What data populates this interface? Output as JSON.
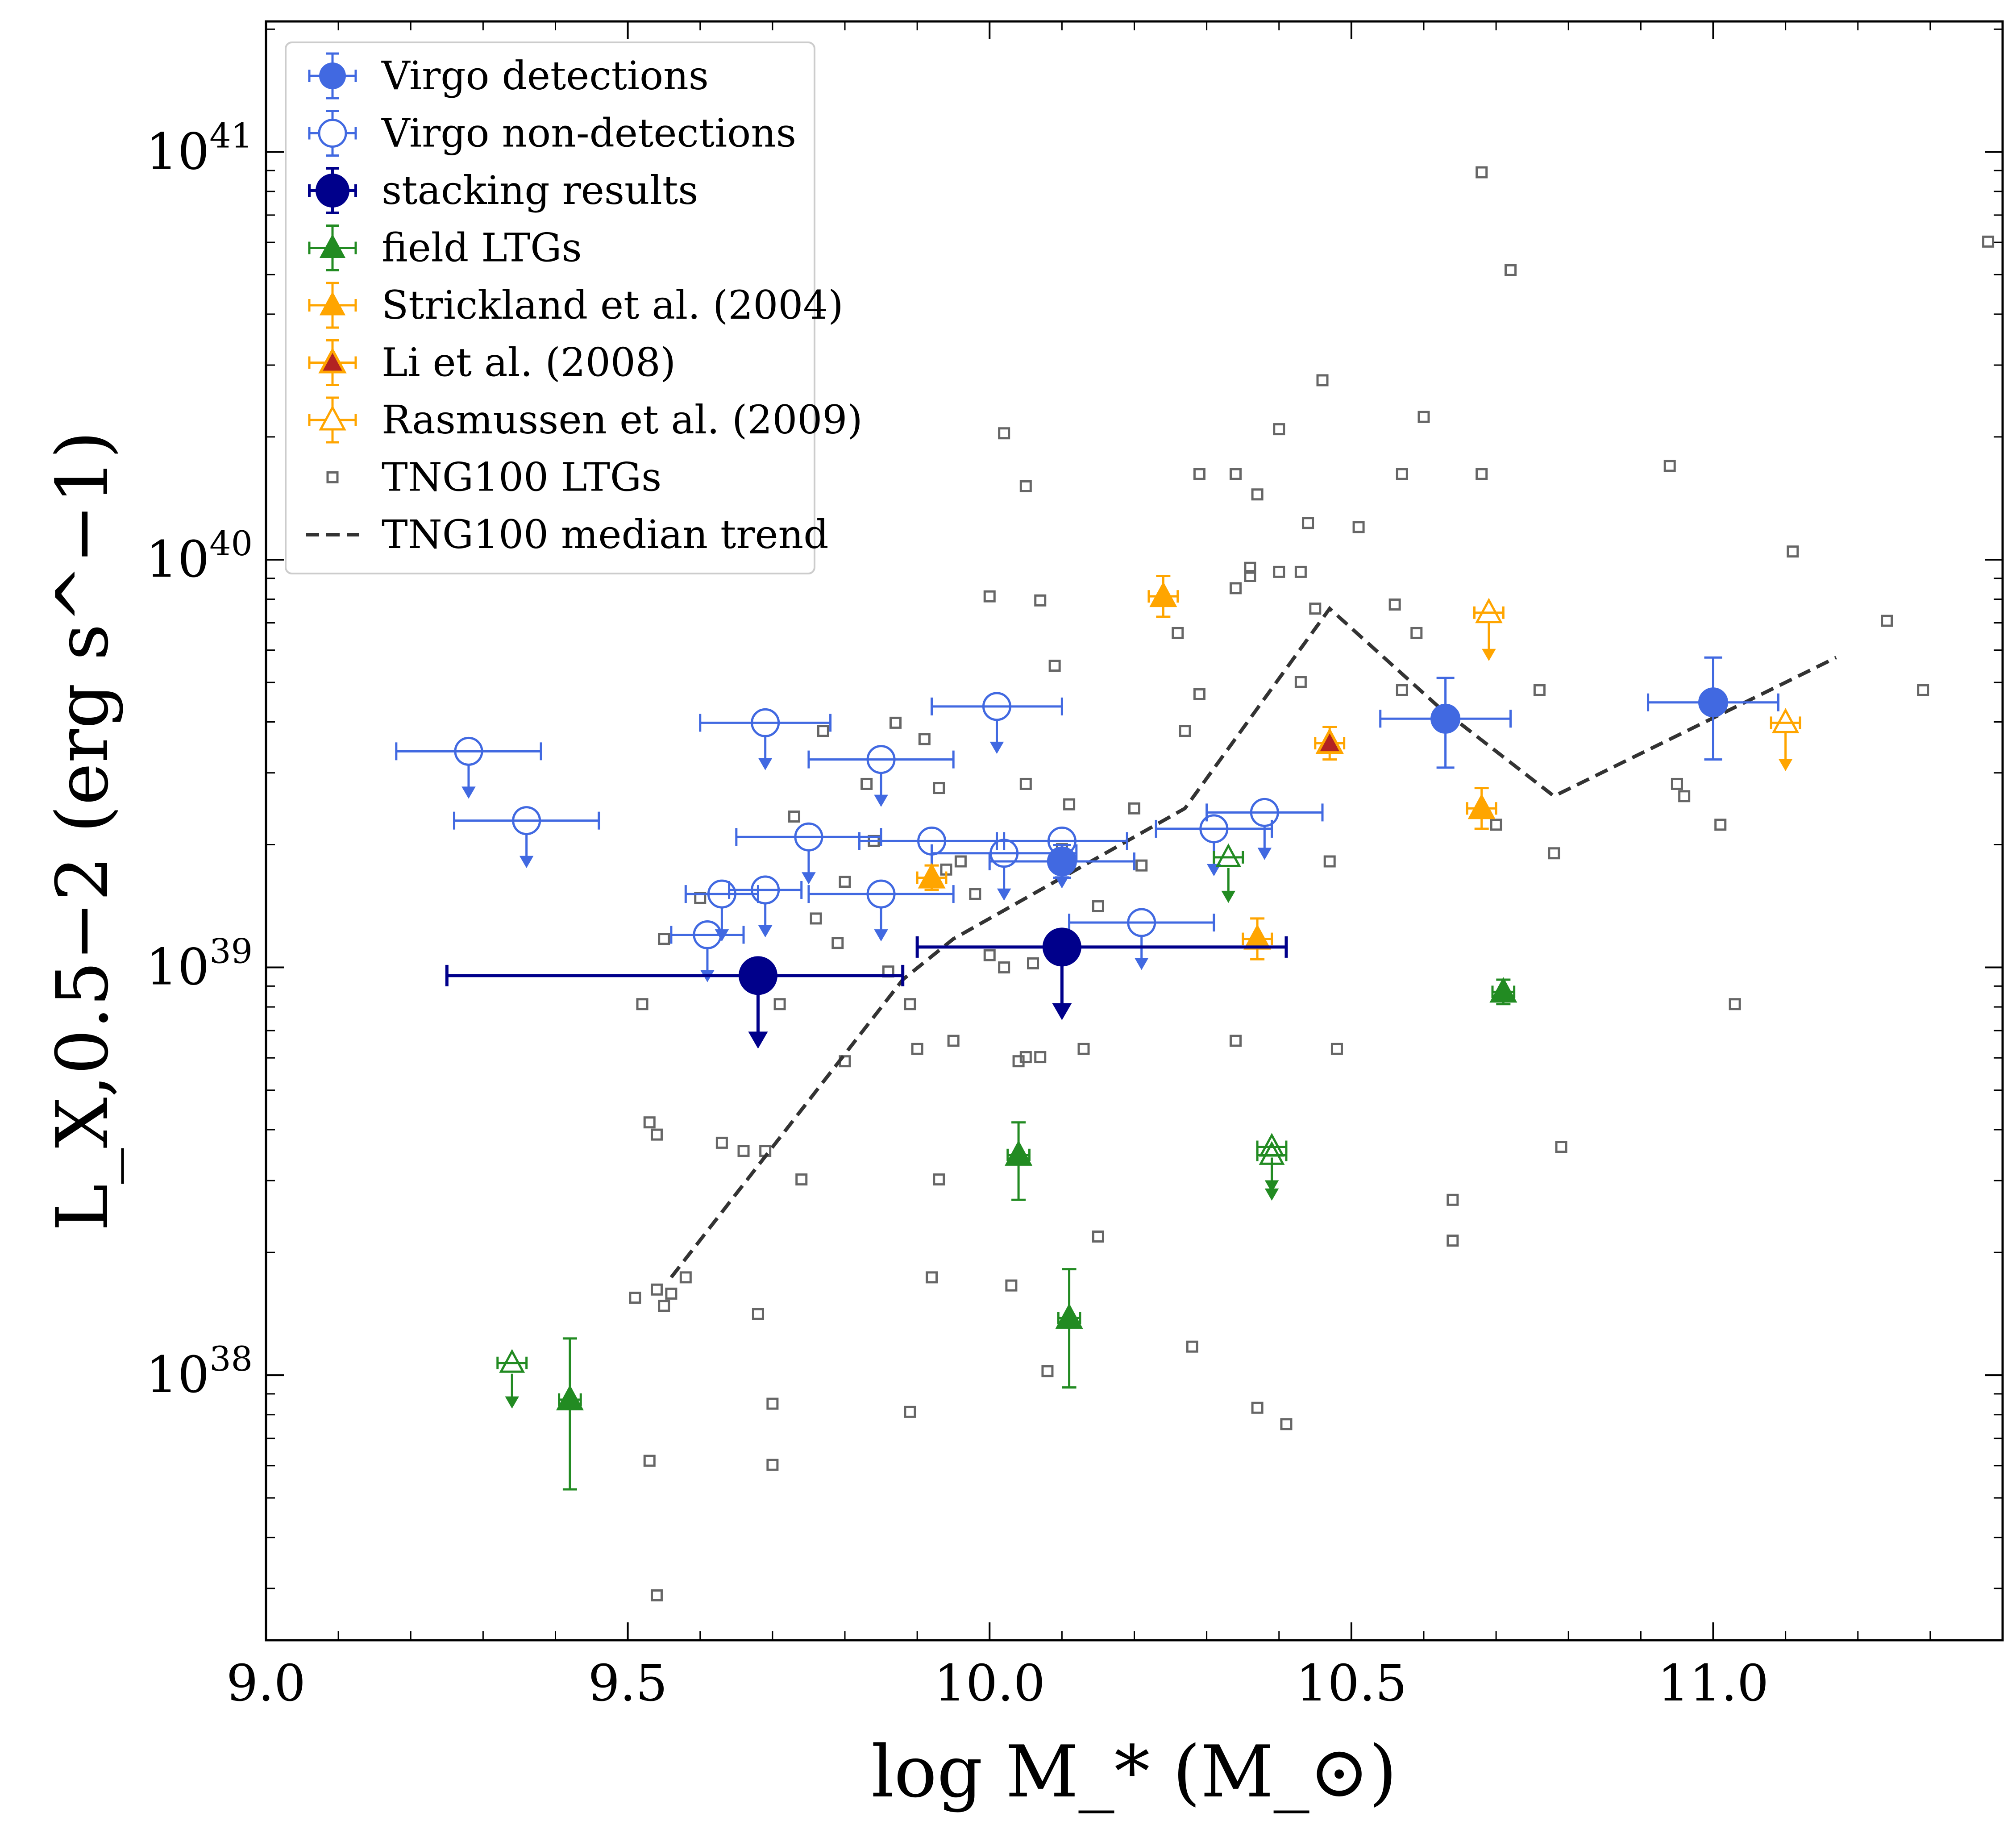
{
  "chart_data": {
    "type": "scatter",
    "xlabel": "log M_* (M_⊙)",
    "ylabel": "L_X,0.5−2 (erg s^−1)",
    "xlim": [
      9.0,
      11.4
    ],
    "ylim_log10": [
      37.35,
      41.32
    ],
    "x_ticks": [
      {
        "value": 9.0,
        "label": "9.0"
      },
      {
        "value": 9.5,
        "label": "9.5"
      },
      {
        "value": 10.0,
        "label": "10.0"
      },
      {
        "value": 10.5,
        "label": "10.5"
      },
      {
        "value": 11.0,
        "label": "11.0"
      }
    ],
    "y_ticks": [
      {
        "value": 38,
        "label_base": "10",
        "label_exp": "38"
      },
      {
        "value": 39,
        "label_base": "10",
        "label_exp": "39"
      },
      {
        "value": 40,
        "label_base": "10",
        "label_exp": "40"
      },
      {
        "value": 41,
        "label_base": "10",
        "label_exp": "41"
      }
    ],
    "colors": {
      "virgo": "#4169e1",
      "stacking": "#00008b",
      "field": "#228b22",
      "strickland": "#ffa500",
      "li_face": "#b22222",
      "tng": "#666666",
      "median": "#333333"
    },
    "legend": [
      {
        "key": "virgo_det",
        "label": "Virgo detections"
      },
      {
        "key": "virgo_nondet",
        "label": "Virgo non-detections"
      },
      {
        "key": "stacking",
        "label": "stacking results"
      },
      {
        "key": "field",
        "label": "field LTGs"
      },
      {
        "key": "strickland",
        "label": "Strickland et al. (2004)"
      },
      {
        "key": "li",
        "label": "Li et al. (2008)"
      },
      {
        "key": "rasmussen",
        "label": "Rasmussen et al. (2009)"
      },
      {
        "key": "tng",
        "label": "TNG100 LTGs"
      },
      {
        "key": "median",
        "label": "TNG100 median trend"
      }
    ],
    "series": [
      {
        "name": "Virgo detections",
        "key": "virgo_det",
        "points": [
          {
            "x": 10.1,
            "y": 39.26,
            "xerr": 0.1,
            "yerr_up": 0.04,
            "yerr_down": 0.04
          },
          {
            "x": 10.63,
            "y": 39.61,
            "xerr": 0.09,
            "yerr_up": 0.1,
            "yerr_down": 0.12
          },
          {
            "x": 11.0,
            "y": 39.65,
            "xerr": 0.09,
            "yerr_up": 0.11,
            "yerr_down": 0.14
          }
        ]
      },
      {
        "name": "Virgo non-detections",
        "key": "virgo_nondet",
        "upper_limit": true,
        "points": [
          {
            "x": 9.28,
            "y": 39.53,
            "xerr": 0.1
          },
          {
            "x": 9.36,
            "y": 39.36,
            "xerr": 0.1
          },
          {
            "x": 9.61,
            "y": 39.08,
            "xerr": 0.05
          },
          {
            "x": 9.63,
            "y": 39.18,
            "xerr": 0.05
          },
          {
            "x": 9.69,
            "y": 39.19,
            "xerr": 0.05
          },
          {
            "x": 9.69,
            "y": 39.6,
            "xerr": 0.09
          },
          {
            "x": 9.75,
            "y": 39.32,
            "xerr": 0.1
          },
          {
            "x": 9.85,
            "y": 39.51,
            "xerr": 0.1
          },
          {
            "x": 9.85,
            "y": 39.18,
            "xerr": 0.1
          },
          {
            "x": 9.92,
            "y": 39.31,
            "xerr": 0.1
          },
          {
            "x": 10.01,
            "y": 39.64,
            "xerr": 0.09
          },
          {
            "x": 10.02,
            "y": 39.28,
            "xerr": 0.1
          },
          {
            "x": 10.1,
            "y": 39.31,
            "xerr": 0.09
          },
          {
            "x": 10.21,
            "y": 39.11,
            "xerr": 0.1
          },
          {
            "x": 10.31,
            "y": 39.34,
            "xerr": 0.08
          },
          {
            "x": 10.38,
            "y": 39.38,
            "xerr": 0.08
          }
        ]
      },
      {
        "name": "stacking results",
        "key": "stacking",
        "upper_limit": true,
        "points": [
          {
            "x": 9.68,
            "y": 38.98,
            "xerr_low": 0.43,
            "xerr_high": 0.2
          },
          {
            "x": 10.1,
            "y": 39.05,
            "xerr_low": 0.2,
            "xerr_high": 0.31
          }
        ]
      },
      {
        "name": "field LTGs",
        "key": "field",
        "points": [
          {
            "x": 9.42,
            "y": 37.94,
            "xerr": 0.015,
            "yerr_up": 0.15,
            "yerr_down": 0.22,
            "filled": true
          },
          {
            "x": 10.04,
            "y": 38.54,
            "xerr": 0.015,
            "yerr_up": 0.08,
            "yerr_down": 0.11,
            "filled": true
          },
          {
            "x": 10.11,
            "y": 38.14,
            "xerr": 0.015,
            "yerr_up": 0.12,
            "yerr_down": 0.17,
            "filled": true
          },
          {
            "x": 10.71,
            "y": 38.94,
            "xerr": 0.015,
            "yerr_up": 0.03,
            "yerr_down": 0.03,
            "filled": true
          },
          {
            "x": 9.34,
            "y": 38.03,
            "xerr": 0.02,
            "upper_limit": true,
            "filled": false
          },
          {
            "x": 10.33,
            "y": 39.27,
            "xerr": 0.02,
            "upper_limit": true,
            "filled": false
          },
          {
            "x": 10.39,
            "y": 38.56,
            "xerr": 0.02,
            "upper_limit": true,
            "filled": false
          },
          {
            "x": 10.39,
            "y": 38.54,
            "xerr": 0.02,
            "upper_limit": true,
            "filled": false
          }
        ]
      },
      {
        "name": "Strickland et al. (2004)",
        "key": "strickland",
        "points": [
          {
            "x": 9.92,
            "y": 39.22,
            "xerr": 0.02,
            "yerr_up": 0.03,
            "yerr_down": 0.03
          },
          {
            "x": 10.24,
            "y": 39.91,
            "xerr": 0.02,
            "yerr_up": 0.05,
            "yerr_down": 0.05
          },
          {
            "x": 10.37,
            "y": 39.07,
            "xerr": 0.02,
            "yerr_up": 0.05,
            "yerr_down": 0.05
          },
          {
            "x": 10.68,
            "y": 39.39,
            "xerr": 0.02,
            "yerr_up": 0.05,
            "yerr_down": 0.05
          }
        ]
      },
      {
        "name": "Li et al. (2008)",
        "key": "li",
        "points": [
          {
            "x": 10.47,
            "y": 39.55,
            "xerr": 0.02,
            "yerr_up": 0.04,
            "yerr_down": 0.04
          }
        ]
      },
      {
        "name": "Rasmussen et al. (2009)",
        "key": "rasmussen",
        "upper_limit": true,
        "points": [
          {
            "x": 10.69,
            "y": 39.87,
            "xerr": 0.02
          },
          {
            "x": 11.1,
            "y": 39.6,
            "xerr": 0.02
          }
        ]
      },
      {
        "name": "TNG100 median trend",
        "key": "median",
        "line": true,
        "points": [
          {
            "x": 9.56,
            "y": 38.24
          },
          {
            "x": 9.88,
            "y": 38.97
          },
          {
            "x": 9.95,
            "y": 39.07
          },
          {
            "x": 10.27,
            "y": 39.39
          },
          {
            "x": 10.47,
            "y": 39.88
          },
          {
            "x": 10.62,
            "y": 39.64
          },
          {
            "x": 10.78,
            "y": 39.42
          },
          {
            "x": 11.17,
            "y": 39.76
          }
        ]
      },
      {
        "name": "TNG100 LTGs",
        "key": "tng",
        "points": [
          [
            9.52,
            38.91
          ],
          [
            9.53,
            38.62
          ],
          [
            9.54,
            38.59
          ],
          [
            9.51,
            38.19
          ],
          [
            9.54,
            38.21
          ],
          [
            9.55,
            38.17
          ],
          [
            9.56,
            38.2
          ],
          [
            9.58,
            38.24
          ],
          [
            9.53,
            37.79
          ],
          [
            9.54,
            37.46
          ],
          [
            9.55,
            39.07
          ],
          [
            9.6,
            39.17
          ],
          [
            9.63,
            38.57
          ],
          [
            9.66,
            38.55
          ],
          [
            9.68,
            38.15
          ],
          [
            9.69,
            38.55
          ],
          [
            9.7,
            37.78
          ],
          [
            9.7,
            37.93
          ],
          [
            9.71,
            38.91
          ],
          [
            9.73,
            39.37
          ],
          [
            9.74,
            38.48
          ],
          [
            9.76,
            39.12
          ],
          [
            9.77,
            39.58
          ],
          [
            9.79,
            39.06
          ],
          [
            9.8,
            39.21
          ],
          [
            9.8,
            38.77
          ],
          [
            9.83,
            39.45
          ],
          [
            9.84,
            39.31
          ],
          [
            9.86,
            38.99
          ],
          [
            9.87,
            39.6
          ],
          [
            9.89,
            38.91
          ],
          [
            9.89,
            37.91
          ],
          [
            9.9,
            38.8
          ],
          [
            9.91,
            39.56
          ],
          [
            9.92,
            38.24
          ],
          [
            9.93,
            39.44
          ],
          [
            9.93,
            38.48
          ],
          [
            9.94,
            39.24
          ],
          [
            9.95,
            38.82
          ],
          [
            9.96,
            39.26
          ],
          [
            9.98,
            39.18
          ],
          [
            10.0,
            39.03
          ],
          [
            10.0,
            39.91
          ],
          [
            10.02,
            39.0
          ],
          [
            10.02,
            40.31
          ],
          [
            10.03,
            38.22
          ],
          [
            10.04,
            38.77
          ],
          [
            10.05,
            38.78
          ],
          [
            10.05,
            39.45
          ],
          [
            10.05,
            40.18
          ],
          [
            10.06,
            39.01
          ],
          [
            10.07,
            39.9
          ],
          [
            10.07,
            38.78
          ],
          [
            10.08,
            38.01
          ],
          [
            10.09,
            39.74
          ],
          [
            10.1,
            39.29
          ],
          [
            10.11,
            39.4
          ],
          [
            10.13,
            38.8
          ],
          [
            10.15,
            39.15
          ],
          [
            10.15,
            38.34
          ],
          [
            10.2,
            39.39
          ],
          [
            10.21,
            39.25
          ],
          [
            10.26,
            39.82
          ],
          [
            10.28,
            38.07
          ],
          [
            10.27,
            39.58
          ],
          [
            10.29,
            39.67
          ],
          [
            10.29,
            40.21
          ],
          [
            10.34,
            40.21
          ],
          [
            10.34,
            39.93
          ],
          [
            10.34,
            38.82
          ],
          [
            10.36,
            39.98
          ],
          [
            10.36,
            39.96
          ],
          [
            10.37,
            40.16
          ],
          [
            10.37,
            37.92
          ],
          [
            10.4,
            39.97
          ],
          [
            10.4,
            40.32
          ],
          [
            10.41,
            37.88
          ],
          [
            10.43,
            39.7
          ],
          [
            10.43,
            39.97
          ],
          [
            10.44,
            40.09
          ],
          [
            10.45,
            39.88
          ],
          [
            10.46,
            40.44
          ],
          [
            10.47,
            39.26
          ],
          [
            10.48,
            38.8
          ],
          [
            10.51,
            40.08
          ],
          [
            10.56,
            39.89
          ],
          [
            10.57,
            40.21
          ],
          [
            10.57,
            39.68
          ],
          [
            10.59,
            39.82
          ],
          [
            10.6,
            40.35
          ],
          [
            10.64,
            38.33
          ],
          [
            10.64,
            38.43
          ],
          [
            10.68,
            40.21
          ],
          [
            10.68,
            40.95
          ],
          [
            10.7,
            39.35
          ],
          [
            10.72,
            40.71
          ],
          [
            10.76,
            39.68
          ],
          [
            10.78,
            39.28
          ],
          [
            10.79,
            38.56
          ],
          [
            10.94,
            40.23
          ],
          [
            10.95,
            39.45
          ],
          [
            10.96,
            39.42
          ],
          [
            11.01,
            39.35
          ],
          [
            11.03,
            38.91
          ],
          [
            11.11,
            40.02
          ],
          [
            11.24,
            39.85
          ],
          [
            11.29,
            39.68
          ],
          [
            11.38,
            40.78
          ]
        ]
      }
    ]
  }
}
